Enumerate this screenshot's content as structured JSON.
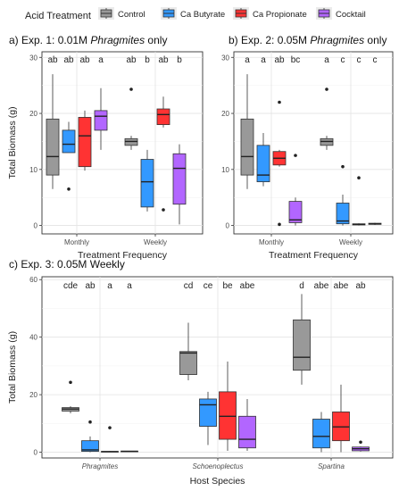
{
  "legend": {
    "title": "Acid Treatment",
    "items": [
      {
        "label": "Control",
        "color": "#999999"
      },
      {
        "label": "Ca Butyrate",
        "color": "#3399ff"
      },
      {
        "label": "Ca Propionate",
        "color": "#ff3333"
      },
      {
        "label": "Cocktail",
        "color": "#b266ff"
      }
    ]
  },
  "chart_data": [
    {
      "type": "boxplot",
      "panel": "a",
      "title_parts": [
        {
          "text": "a) Exp. 1: 0.01M ",
          "italic": false
        },
        {
          "text": "Phragmites",
          "italic": true
        },
        {
          "text": " only",
          "italic": false
        }
      ],
      "xlabel": "Treatment Frequency",
      "ylabel": "Total Biomass (g)",
      "ylim": [
        -1.5,
        31
      ],
      "yticks": [
        "0",
        "10",
        "20",
        "30"
      ],
      "categories": [
        "Monthly",
        "Weekly"
      ],
      "groups": [
        {
          "category": "Monthly",
          "treatment": "Control",
          "box": [
            6.5,
            9,
            12.3,
            19,
            27
          ],
          "outliers": [],
          "letter": "ab"
        },
        {
          "category": "Monthly",
          "treatment": "Ca Butyrate",
          "box": [
            13,
            13,
            14.5,
            17,
            18.5
          ],
          "outliers": [
            6.5
          ],
          "letter": "ab"
        },
        {
          "category": "Monthly",
          "treatment": "Ca Propionate",
          "box": [
            9.8,
            10.5,
            16,
            19.3,
            20.5
          ],
          "outliers": [],
          "letter": "ab"
        },
        {
          "category": "Monthly",
          "treatment": "Cocktail",
          "box": [
            13.5,
            17,
            19.5,
            20.5,
            24.5
          ],
          "outliers": [],
          "letter": "a"
        },
        {
          "category": "Weekly",
          "treatment": "Control",
          "box": [
            13.5,
            14.3,
            15,
            15.5,
            16
          ],
          "outliers": [
            24.3
          ],
          "letter": "ab"
        },
        {
          "category": "Weekly",
          "treatment": "Ca Butyrate",
          "box": [
            2.5,
            3.3,
            7.8,
            11.8,
            13.5
          ],
          "outliers": [],
          "letter": "b"
        },
        {
          "category": "Weekly",
          "treatment": "Ca Propionate",
          "box": [
            17.5,
            18,
            19.8,
            20.8,
            23
          ],
          "outliers": [
            2.8
          ],
          "letter": "ab"
        },
        {
          "category": "Weekly",
          "treatment": "Cocktail",
          "box": [
            0.2,
            3.8,
            10.2,
            12.8,
            14.5
          ],
          "outliers": [],
          "letter": "b"
        }
      ]
    },
    {
      "type": "boxplot",
      "panel": "b",
      "title_parts": [
        {
          "text": "b) Exp. 2: 0.05M ",
          "italic": false
        },
        {
          "text": "Phragmites",
          "italic": true
        },
        {
          "text": " only",
          "italic": false
        }
      ],
      "xlabel": "Treatment Frequency",
      "ylabel": "",
      "ylim": [
        -1.5,
        31
      ],
      "yticks": [
        "0",
        "10",
        "20",
        "30"
      ],
      "categories": [
        "Monthly",
        "Weekly"
      ],
      "groups": [
        {
          "category": "Monthly",
          "treatment": "Control",
          "box": [
            6.5,
            9,
            12.3,
            19,
            27
          ],
          "outliers": [],
          "letter": "a"
        },
        {
          "category": "Monthly",
          "treatment": "Ca Butyrate",
          "box": [
            7,
            7.8,
            9,
            14.3,
            16.5
          ],
          "outliers": [],
          "letter": "a"
        },
        {
          "category": "Monthly",
          "treatment": "Ca Propionate",
          "box": [
            10.5,
            10.8,
            12,
            13.2,
            13.5
          ],
          "outliers": [
            0.2,
            22
          ],
          "letter": "ab"
        },
        {
          "category": "Monthly",
          "treatment": "Cocktail",
          "box": [
            0,
            0.5,
            1,
            4.3,
            5
          ],
          "outliers": [
            12.5
          ],
          "letter": "bc"
        },
        {
          "category": "Weekly",
          "treatment": "Control",
          "box": [
            13.5,
            14.3,
            15,
            15.5,
            16
          ],
          "outliers": [
            24.3
          ],
          "letter": "a"
        },
        {
          "category": "Weekly",
          "treatment": "Ca Butyrate",
          "box": [
            0,
            0.3,
            0.8,
            4,
            5.5
          ],
          "outliers": [
            10.5
          ],
          "letter": "c"
        },
        {
          "category": "Weekly",
          "treatment": "Ca Propionate",
          "box": [
            0,
            0.1,
            0.2,
            0.3,
            0.4
          ],
          "outliers": [
            8.5
          ],
          "letter": "c"
        },
        {
          "category": "Weekly",
          "treatment": "Cocktail",
          "box": [
            0.1,
            0.2,
            0.3,
            0.4,
            0.5
          ],
          "outliers": [],
          "letter": "c"
        }
      ]
    },
    {
      "type": "boxplot",
      "panel": "c",
      "title": "c) Exp. 3: 0.05M Weekly",
      "xlabel": "Host Species",
      "ylabel": "Total Biomass (g)",
      "ylim": [
        -2,
        61
      ],
      "yticks": [
        "0",
        "20",
        "40",
        "60"
      ],
      "categories": [
        "Phragmites",
        "Schoenoplectus",
        "Spartina"
      ],
      "groups": [
        {
          "category": "Phragmites",
          "treatment": "Control",
          "box": [
            13.5,
            14.3,
            15,
            15.5,
            16
          ],
          "outliers": [
            24.3
          ],
          "letter": "cde"
        },
        {
          "category": "Phragmites",
          "treatment": "Ca Butyrate",
          "box": [
            0,
            0.3,
            0.8,
            4,
            5.5
          ],
          "outliers": [
            10.5
          ],
          "letter": "ab"
        },
        {
          "category": "Phragmites",
          "treatment": "Ca Propionate",
          "box": [
            0,
            0.1,
            0.2,
            0.3,
            0.4
          ],
          "outliers": [
            8.5
          ],
          "letter": "a"
        },
        {
          "category": "Phragmites",
          "treatment": "Cocktail",
          "box": [
            0.1,
            0.2,
            0.3,
            0.4,
            0.5
          ],
          "outliers": [],
          "letter": "a"
        },
        {
          "category": "Schoenoplectus",
          "treatment": "Control",
          "box": [
            25,
            27,
            34.5,
            35,
            45
          ],
          "outliers": [],
          "letter": "cd"
        },
        {
          "category": "Schoenoplectus",
          "treatment": "Ca Butyrate",
          "box": [
            2.5,
            9,
            16.5,
            18.5,
            21
          ],
          "outliers": [],
          "letter": "ce"
        },
        {
          "category": "Schoenoplectus",
          "treatment": "Ca Propionate",
          "box": [
            0.5,
            4.5,
            12.5,
            21,
            31.5
          ],
          "outliers": [],
          "letter": "be"
        },
        {
          "category": "Schoenoplectus",
          "treatment": "Cocktail",
          "box": [
            0.5,
            1.5,
            4.5,
            12.5,
            18.5
          ],
          "outliers": [],
          "letter": "abe"
        },
        {
          "category": "Spartina",
          "treatment": "Control",
          "box": [
            23.5,
            28.5,
            33,
            46,
            55
          ],
          "outliers": [],
          "letter": "d"
        },
        {
          "category": "Spartina",
          "treatment": "Ca Butyrate",
          "box": [
            0,
            1.5,
            5.5,
            11.5,
            14
          ],
          "outliers": [],
          "letter": "abe"
        },
        {
          "category": "Spartina",
          "treatment": "Ca Propionate",
          "box": [
            0,
            4,
            8.8,
            14,
            23.5
          ],
          "outliers": [],
          "letter": "abe"
        },
        {
          "category": "Spartina",
          "treatment": "Cocktail",
          "box": [
            0.2,
            0.5,
            1.2,
            1.8,
            2
          ],
          "outliers": [
            3.5
          ],
          "letter": "ab"
        }
      ]
    }
  ]
}
